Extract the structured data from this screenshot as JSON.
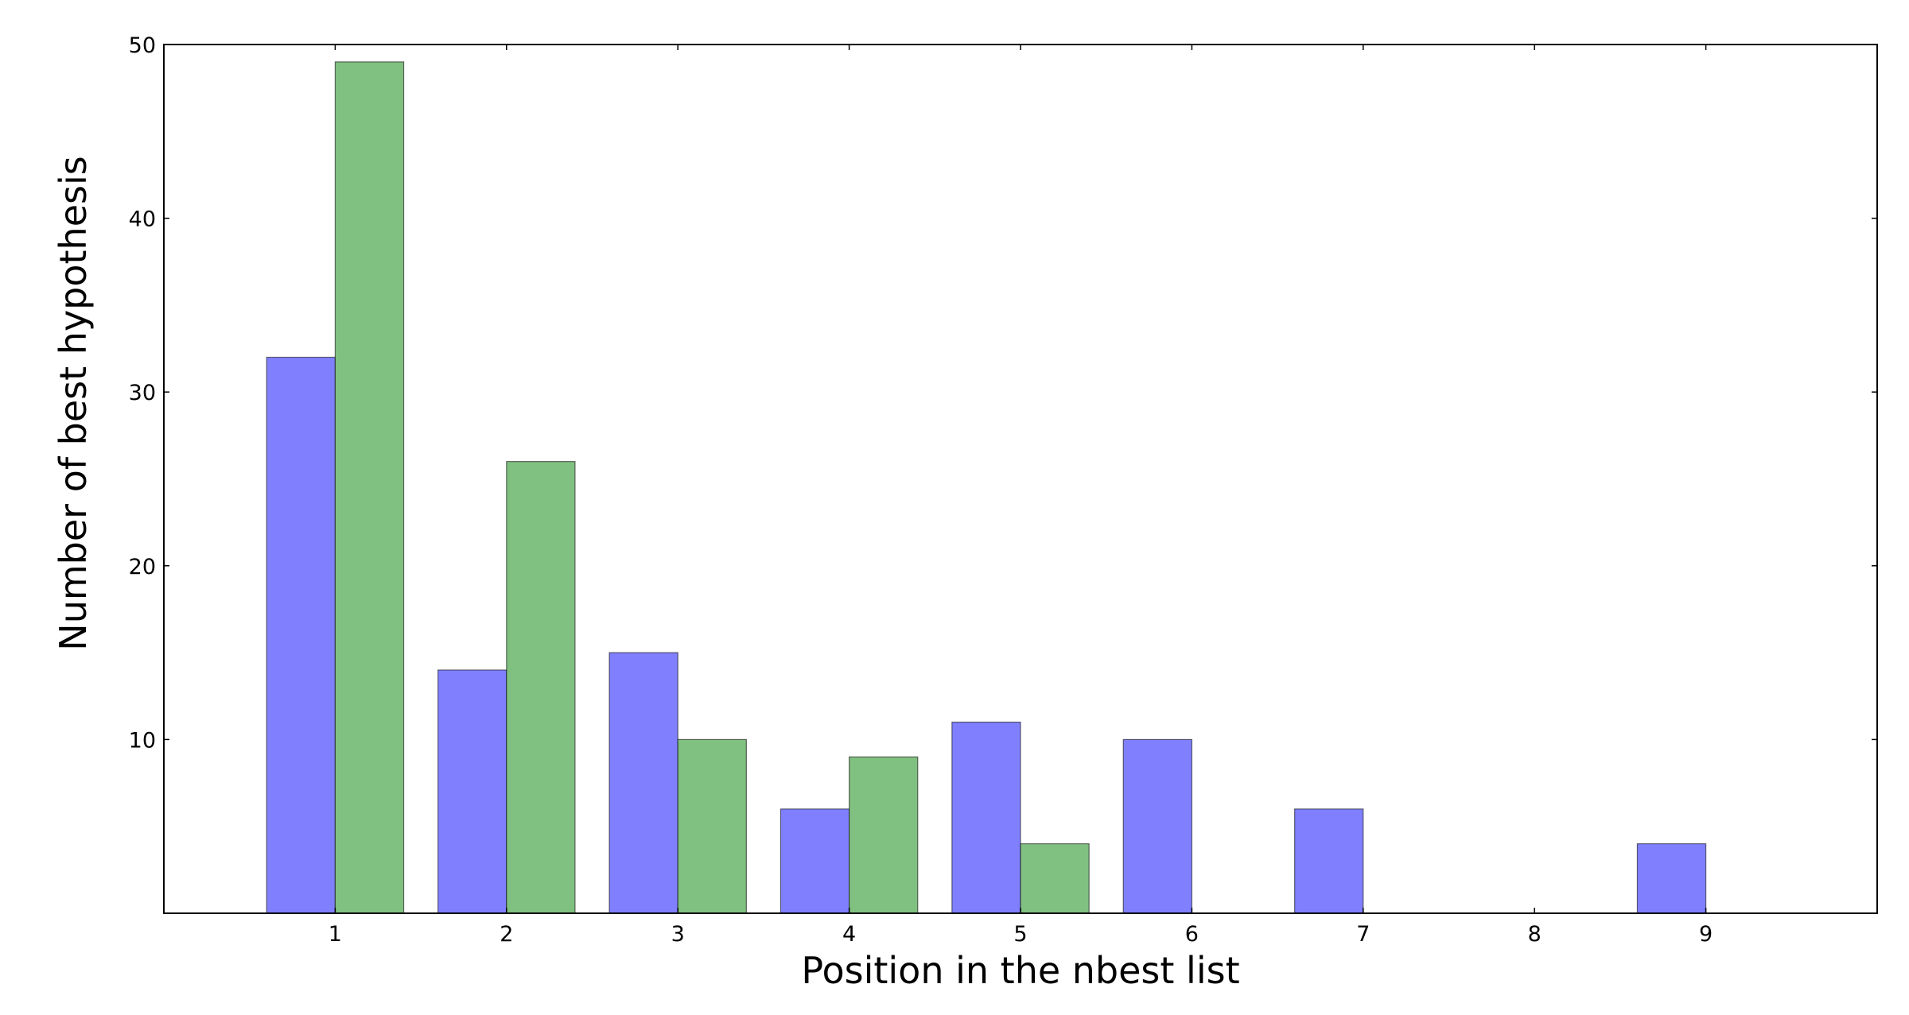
{
  "chart_data": {
    "type": "bar",
    "title": "",
    "xlabel": "Position in the nbest list",
    "ylabel": "Number of best hypothesis",
    "categories": [
      "1",
      "2",
      "3",
      "4",
      "5",
      "6",
      "7",
      "8",
      "9"
    ],
    "x_positions": [
      1,
      2,
      3,
      4,
      5,
      6,
      7,
      8,
      9
    ],
    "xlim": [
      0,
      10
    ],
    "ylim": [
      0,
      50
    ],
    "yticks": [
      10,
      20,
      30,
      40,
      50
    ],
    "series": [
      {
        "values": [
          32,
          14,
          15,
          6,
          11,
          10,
          6,
          0,
          4
        ],
        "color": "#8080ff"
      },
      {
        "values": [
          49,
          26,
          10,
          9,
          4,
          0,
          0,
          0,
          0
        ],
        "color": "#80c080"
      }
    ],
    "bar_width": 0.4,
    "grid": false,
    "legend": false
  }
}
